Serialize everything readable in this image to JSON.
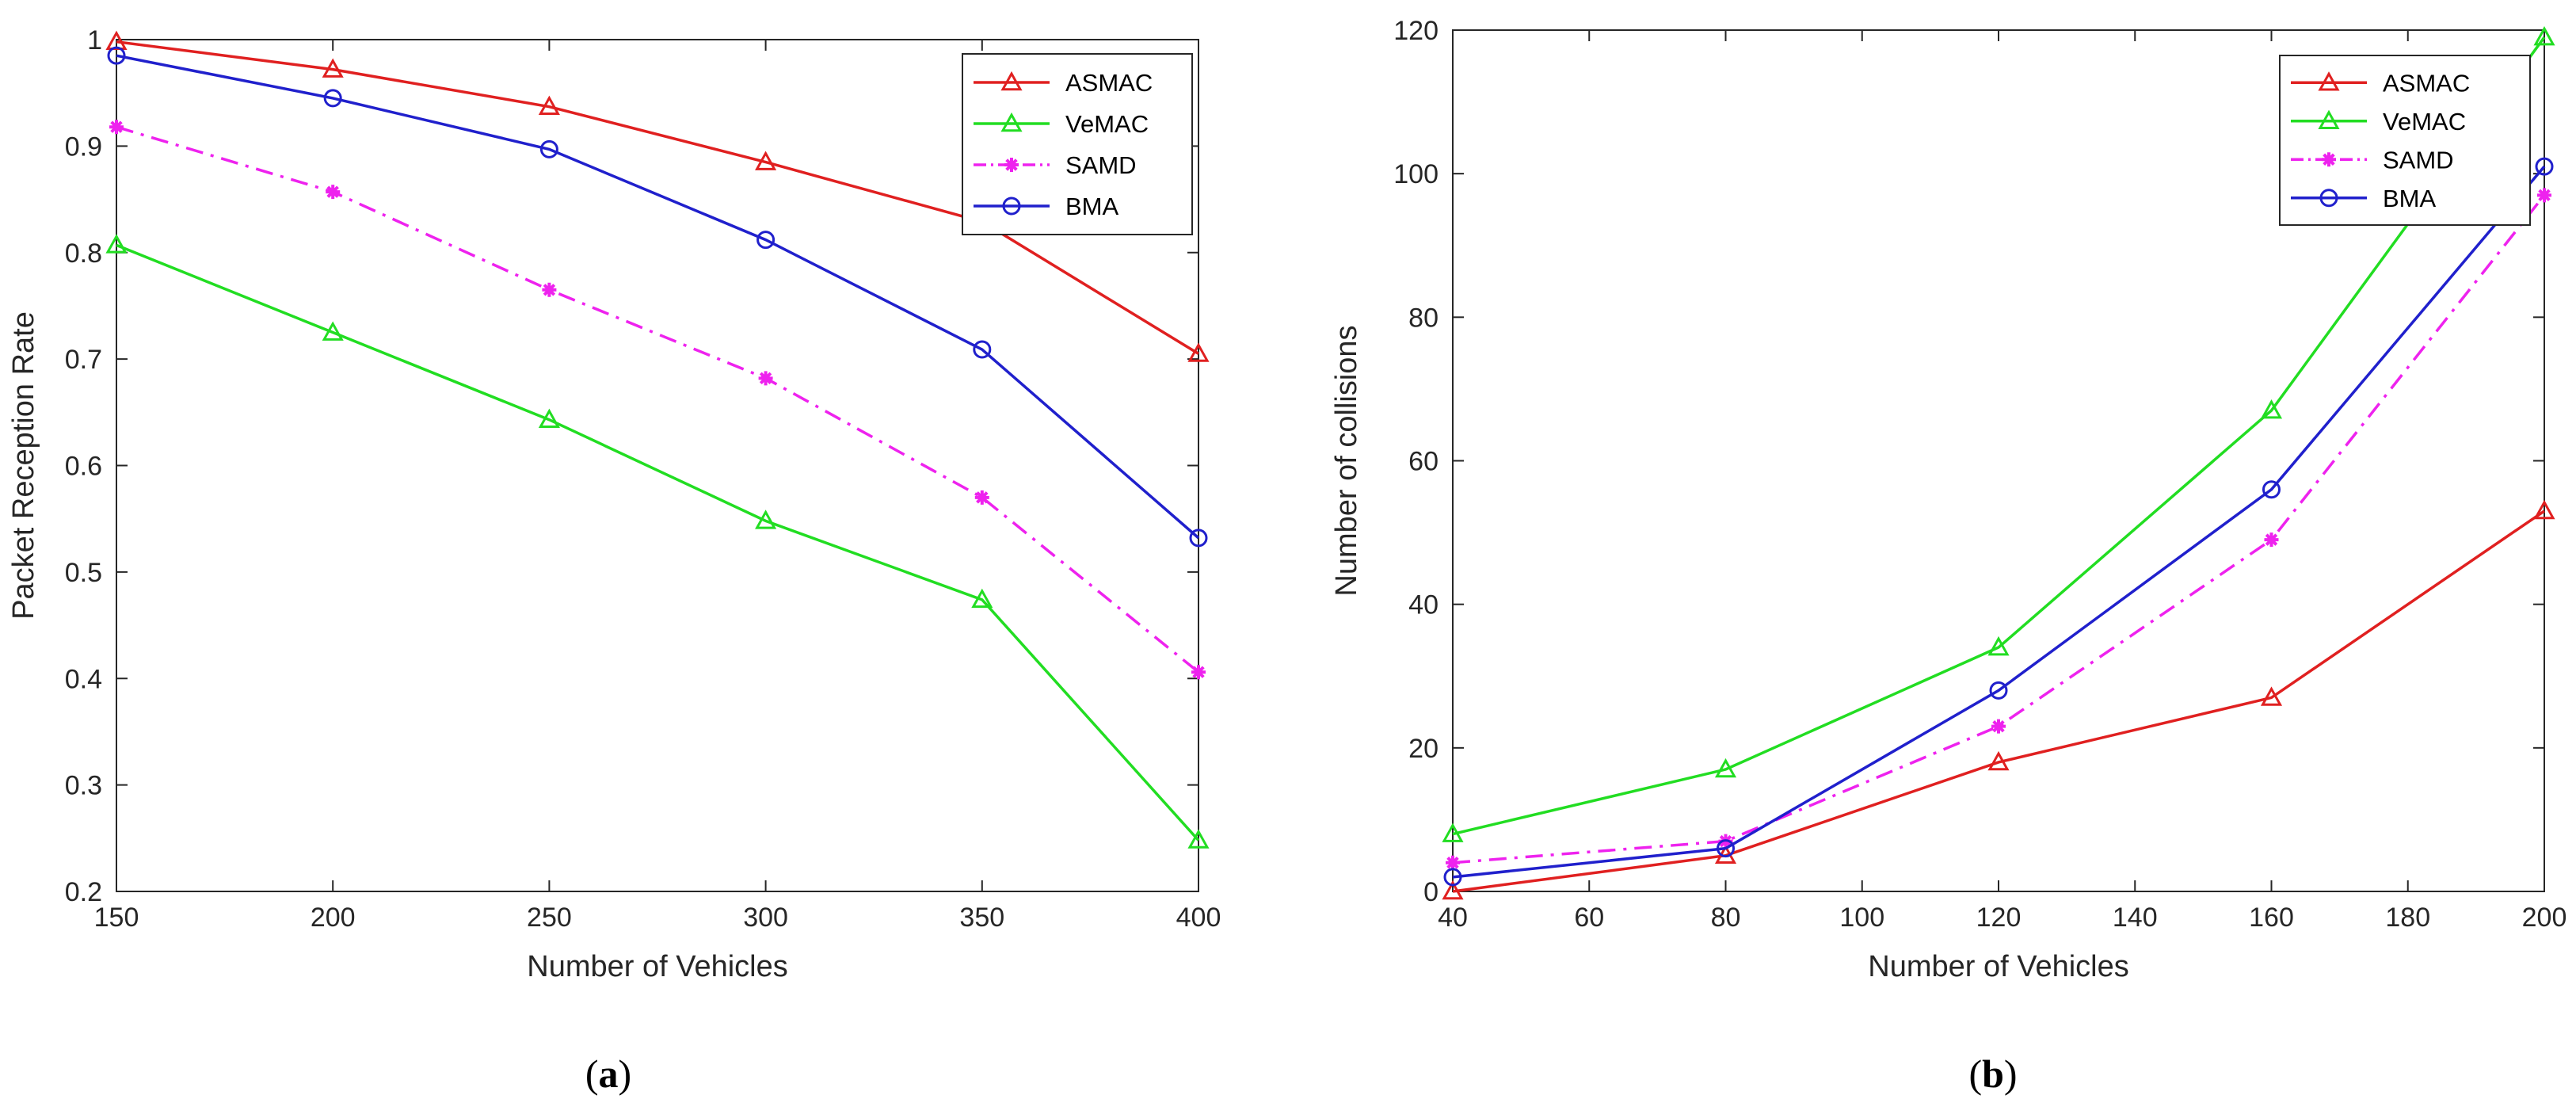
{
  "chart_data": [
    {
      "type": "line",
      "caption": "a",
      "xlabel": "Number of Vehicles",
      "ylabel": "Packet Reception Rate",
      "xlim": [
        150,
        400
      ],
      "ylim": [
        0.2,
        1
      ],
      "xticks": [
        150,
        200,
        250,
        300,
        350,
        400
      ],
      "yticks": [
        0.2,
        0.3,
        0.4,
        0.5,
        0.6,
        0.7,
        0.8,
        0.9,
        1
      ],
      "x": [
        150,
        200,
        250,
        300,
        350,
        400
      ],
      "legend_position": "top-right",
      "grid": false,
      "series": [
        {
          "name": "ASMAC",
          "values": [
            0.998,
            0.972,
            0.937,
            0.885,
            0.829,
            0.705
          ],
          "color": "#e02020",
          "marker": "triangle",
          "dash": "solid"
        },
        {
          "name": "VeMAC",
          "values": [
            0.807,
            0.725,
            0.643,
            0.548,
            0.474,
            0.248
          ],
          "color": "#22dd22",
          "marker": "triangle",
          "dash": "solid"
        },
        {
          "name": "SAMD",
          "values": [
            0.918,
            0.857,
            0.765,
            0.682,
            0.57,
            0.406
          ],
          "color": "#ee22ee",
          "marker": "star",
          "dash": "dashdot"
        },
        {
          "name": "BMA",
          "values": [
            0.985,
            0.945,
            0.897,
            0.812,
            0.709,
            0.532
          ],
          "color": "#2020cc",
          "marker": "circle",
          "dash": "solid"
        }
      ]
    },
    {
      "type": "line",
      "caption": "b",
      "xlabel": "Number of Vehicles",
      "ylabel": "Number of collisions",
      "xlim": [
        40,
        200
      ],
      "ylim": [
        0,
        120
      ],
      "xticks": [
        40,
        60,
        80,
        100,
        120,
        140,
        160,
        180,
        200
      ],
      "yticks": [
        0,
        20,
        40,
        60,
        80,
        100,
        120
      ],
      "x": [
        40,
        80,
        120,
        160,
        200
      ],
      "legend_position": "top-right",
      "grid": false,
      "series": [
        {
          "name": "ASMAC",
          "values": [
            0,
            5,
            18,
            27,
            53
          ],
          "color": "#e02020",
          "marker": "triangle",
          "dash": "solid"
        },
        {
          "name": "VeMAC",
          "values": [
            8,
            17,
            34,
            67,
            119
          ],
          "color": "#22dd22",
          "marker": "triangle",
          "dash": "solid"
        },
        {
          "name": "SAMD",
          "values": [
            4,
            7,
            23,
            49,
            97
          ],
          "color": "#ee22ee",
          "marker": "star",
          "dash": "dashdot"
        },
        {
          "name": "BMA",
          "values": [
            2,
            6,
            28,
            56,
            101
          ],
          "color": "#2020cc",
          "marker": "circle",
          "dash": "solid"
        }
      ]
    }
  ]
}
